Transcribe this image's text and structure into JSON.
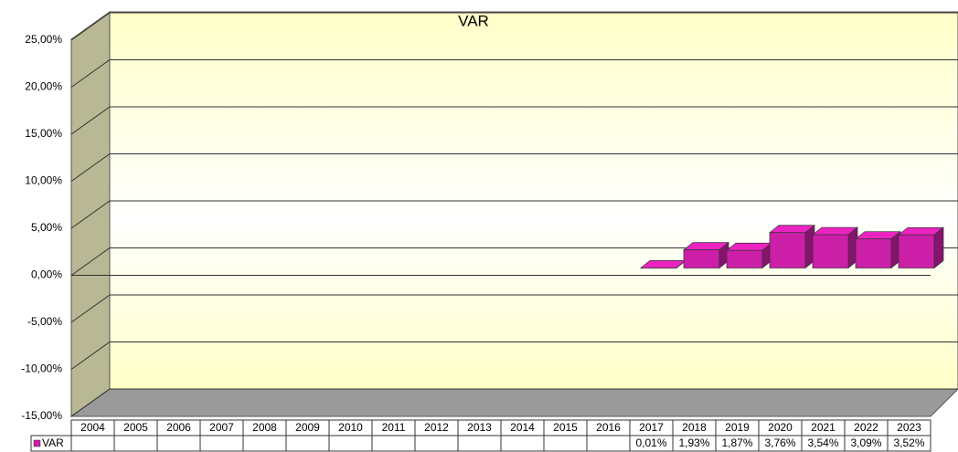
{
  "chart_data": {
    "type": "bar3d",
    "title": "VAR",
    "categories": [
      "2004",
      "2005",
      "2006",
      "2007",
      "2008",
      "2009",
      "2010",
      "2011",
      "2012",
      "2013",
      "2014",
      "2015",
      "2016",
      "2017",
      "2018",
      "2019",
      "2020",
      "2021",
      "2022",
      "2023"
    ],
    "series": [
      {
        "name": "VAR",
        "color": "#cc1fa8",
        "values": [
          null,
          null,
          null,
          null,
          null,
          null,
          null,
          null,
          null,
          null,
          null,
          null,
          null,
          0.01,
          1.93,
          1.87,
          3.76,
          3.54,
          3.09,
          3.52
        ],
        "value_labels": [
          null,
          null,
          null,
          null,
          null,
          null,
          null,
          null,
          null,
          null,
          null,
          null,
          null,
          "0,01%",
          "1,93%",
          "1,87%",
          "3,76%",
          "3,54%",
          "3,09%",
          "3,52%"
        ]
      }
    ],
    "ylim": [
      -15,
      25
    ],
    "yticks": [
      {
        "value": -15,
        "label": "-15,00%"
      },
      {
        "value": -10,
        "label": "-10,00%"
      },
      {
        "value": -5,
        "label": "-5,00%"
      },
      {
        "value": 0,
        "label": "0,00%"
      },
      {
        "value": 5,
        "label": "5,00%"
      },
      {
        "value": 10,
        "label": "10,00%"
      },
      {
        "value": 15,
        "label": "15,00%"
      },
      {
        "value": 20,
        "label": "20,00%"
      },
      {
        "value": 25,
        "label": "25,00%"
      }
    ],
    "grid": true
  }
}
